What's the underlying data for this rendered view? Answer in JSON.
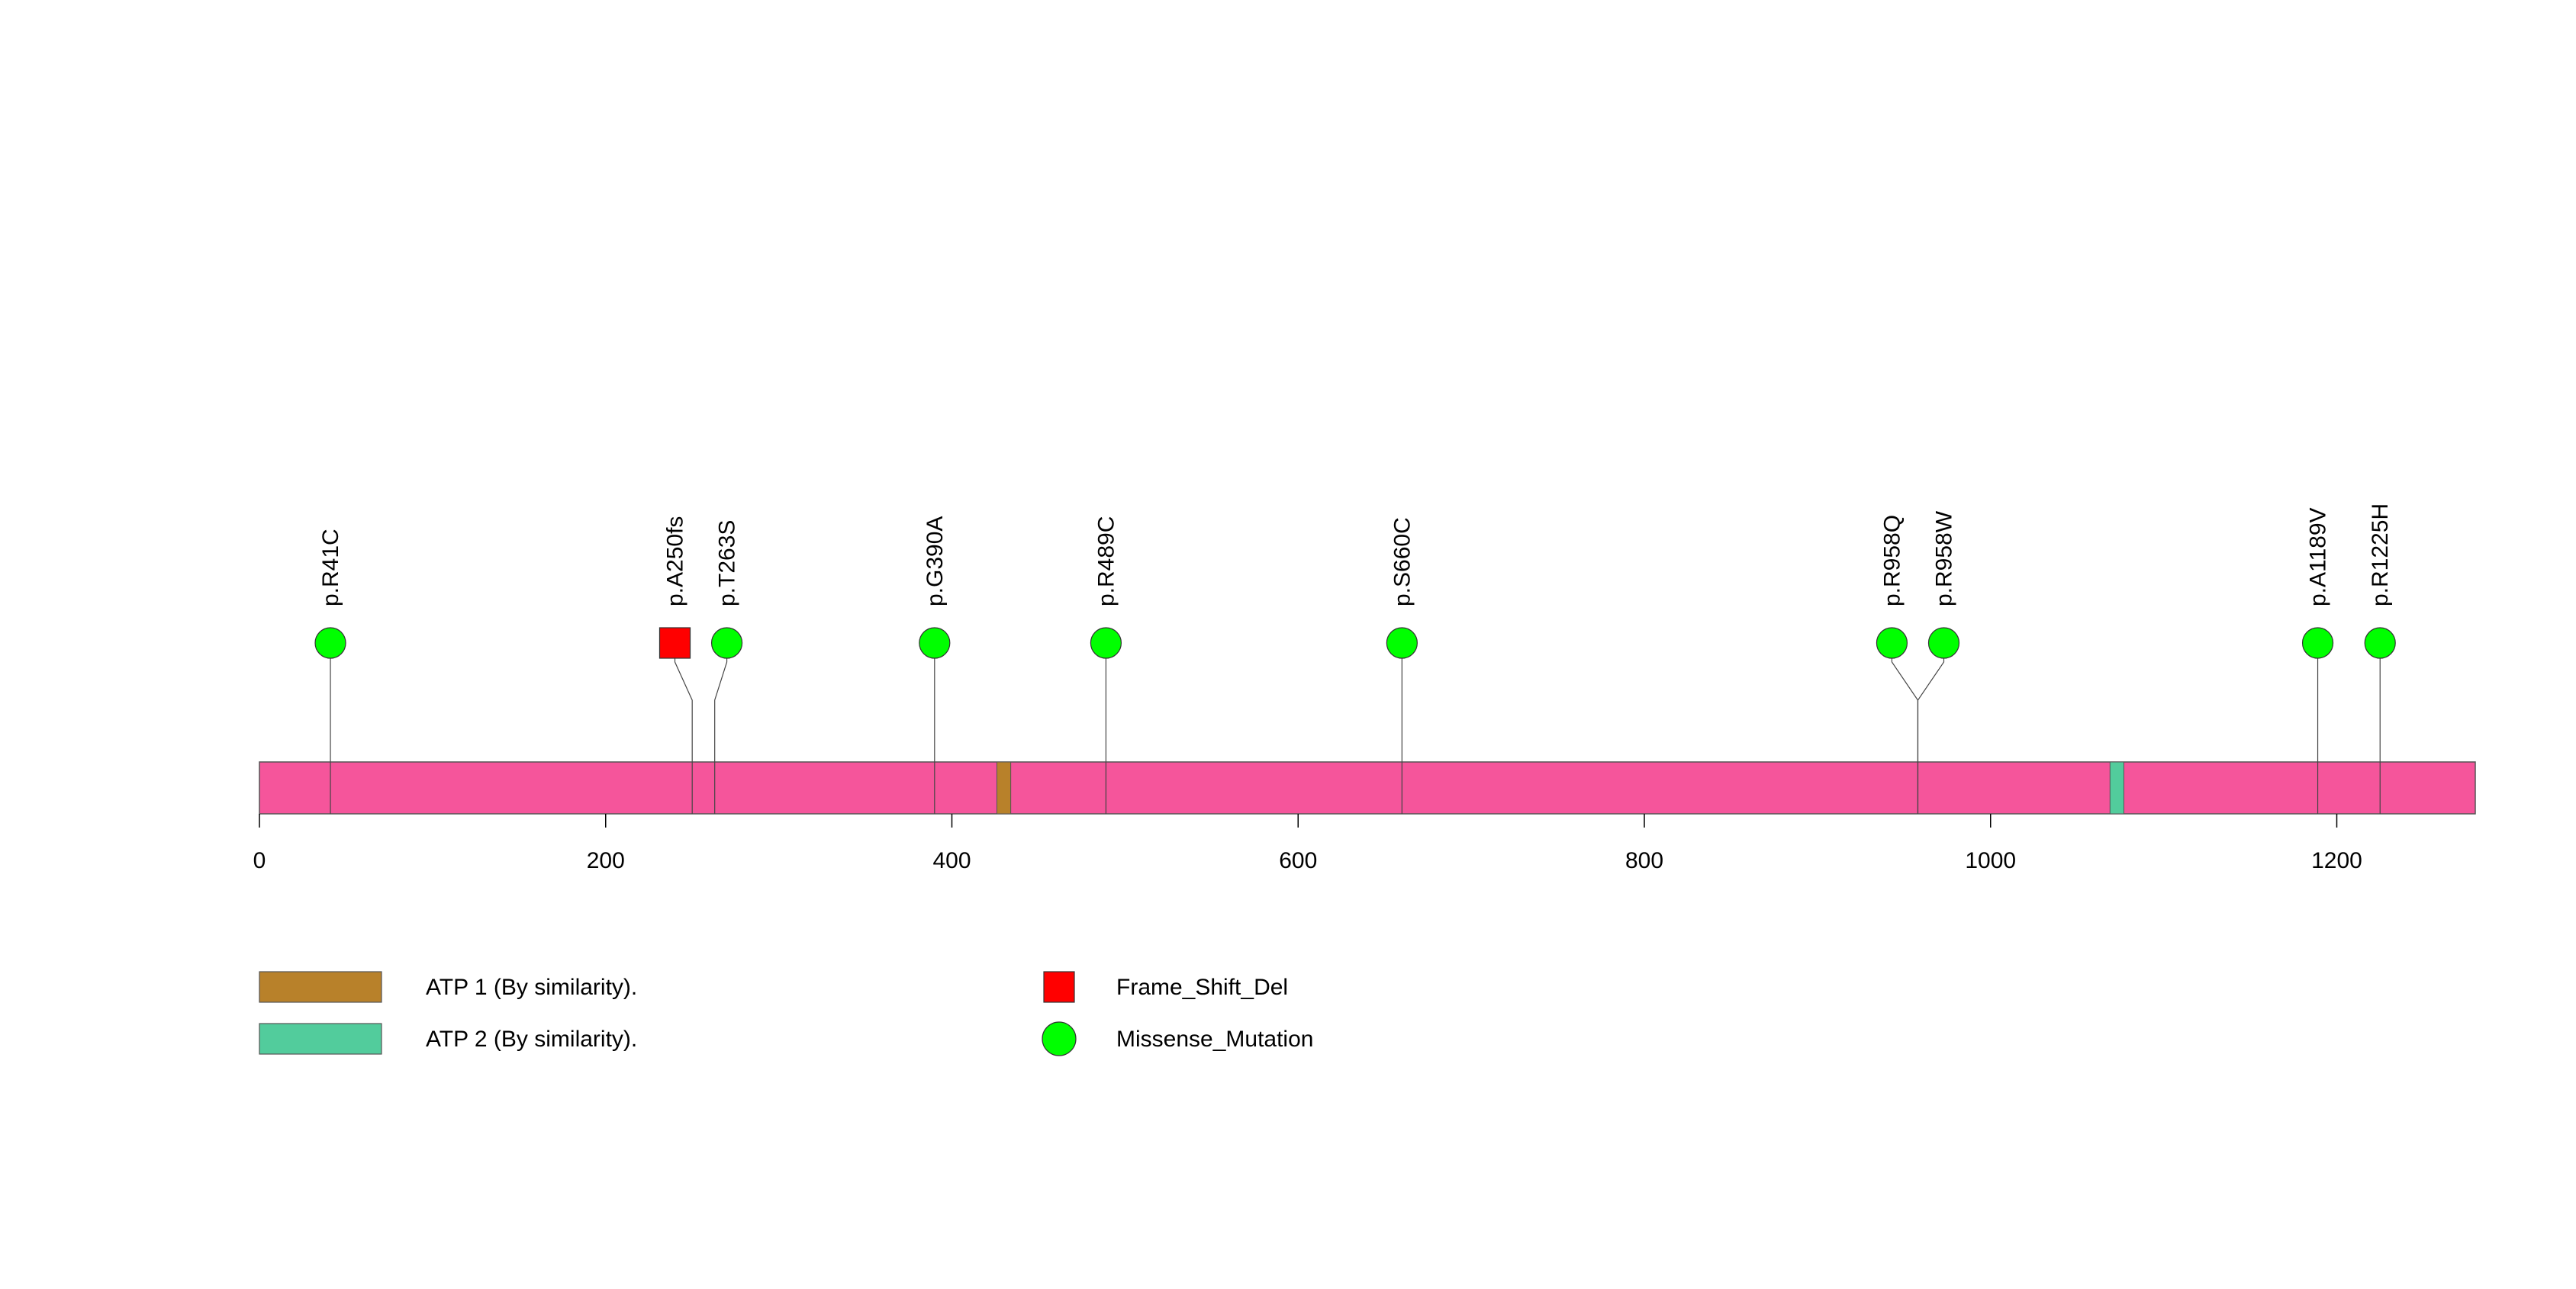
{
  "chart_data": {
    "type": "lollipop",
    "protein_length": 1280,
    "axis": {
      "xlim": [
        0,
        1280
      ],
      "ticks": [
        0,
        200,
        400,
        600,
        800,
        1000,
        1200
      ],
      "tick_labels": [
        "0",
        "200",
        "400",
        "600",
        "800",
        "1000",
        "1200"
      ]
    },
    "domains": [
      {
        "name": "ATP 1 (By similarity).",
        "start": 426,
        "end": 434,
        "color": "#b8812a"
      },
      {
        "name": "ATP 2 (By similarity).",
        "start": 1069,
        "end": 1077,
        "color": "#52cc9c"
      }
    ],
    "mutations": [
      {
        "label": "p.R41C",
        "position": 41,
        "type": "Missense_Mutation",
        "marker_position": 41
      },
      {
        "label": "p.A250fs",
        "position": 250,
        "type": "Frame_Shift_Del",
        "marker_position": 240
      },
      {
        "label": "p.T263S",
        "position": 263,
        "type": "Missense_Mutation",
        "marker_position": 270
      },
      {
        "label": "p.G390A",
        "position": 390,
        "type": "Missense_Mutation",
        "marker_position": 390
      },
      {
        "label": "p.R489C",
        "position": 489,
        "type": "Missense_Mutation",
        "marker_position": 489
      },
      {
        "label": "p.S660C",
        "position": 660,
        "type": "Missense_Mutation",
        "marker_position": 660
      },
      {
        "label": "p.R958Q",
        "position": 958,
        "type": "Missense_Mutation",
        "marker_position": 943
      },
      {
        "label": "p.R958W",
        "position": 958,
        "type": "Missense_Mutation",
        "marker_position": 973
      },
      {
        "label": "p.A1189V",
        "position": 1189,
        "type": "Missense_Mutation",
        "marker_position": 1189
      },
      {
        "label": "p.R1225H",
        "position": 1225,
        "type": "Missense_Mutation",
        "marker_position": 1225
      }
    ],
    "mutation_types": [
      {
        "name": "Frame_Shift_Del",
        "shape": "square",
        "color": "#ff0000"
      },
      {
        "name": "Missense_Mutation",
        "shape": "circle",
        "color": "#00ff00"
      }
    ],
    "protein_color": "#f5559b",
    "legend": {
      "domains": [
        "ATP 1 (By similarity).",
        "ATP 2 (By similarity)."
      ],
      "mutation_types": [
        "Frame_Shift_Del",
        "Missense_Mutation"
      ]
    }
  }
}
